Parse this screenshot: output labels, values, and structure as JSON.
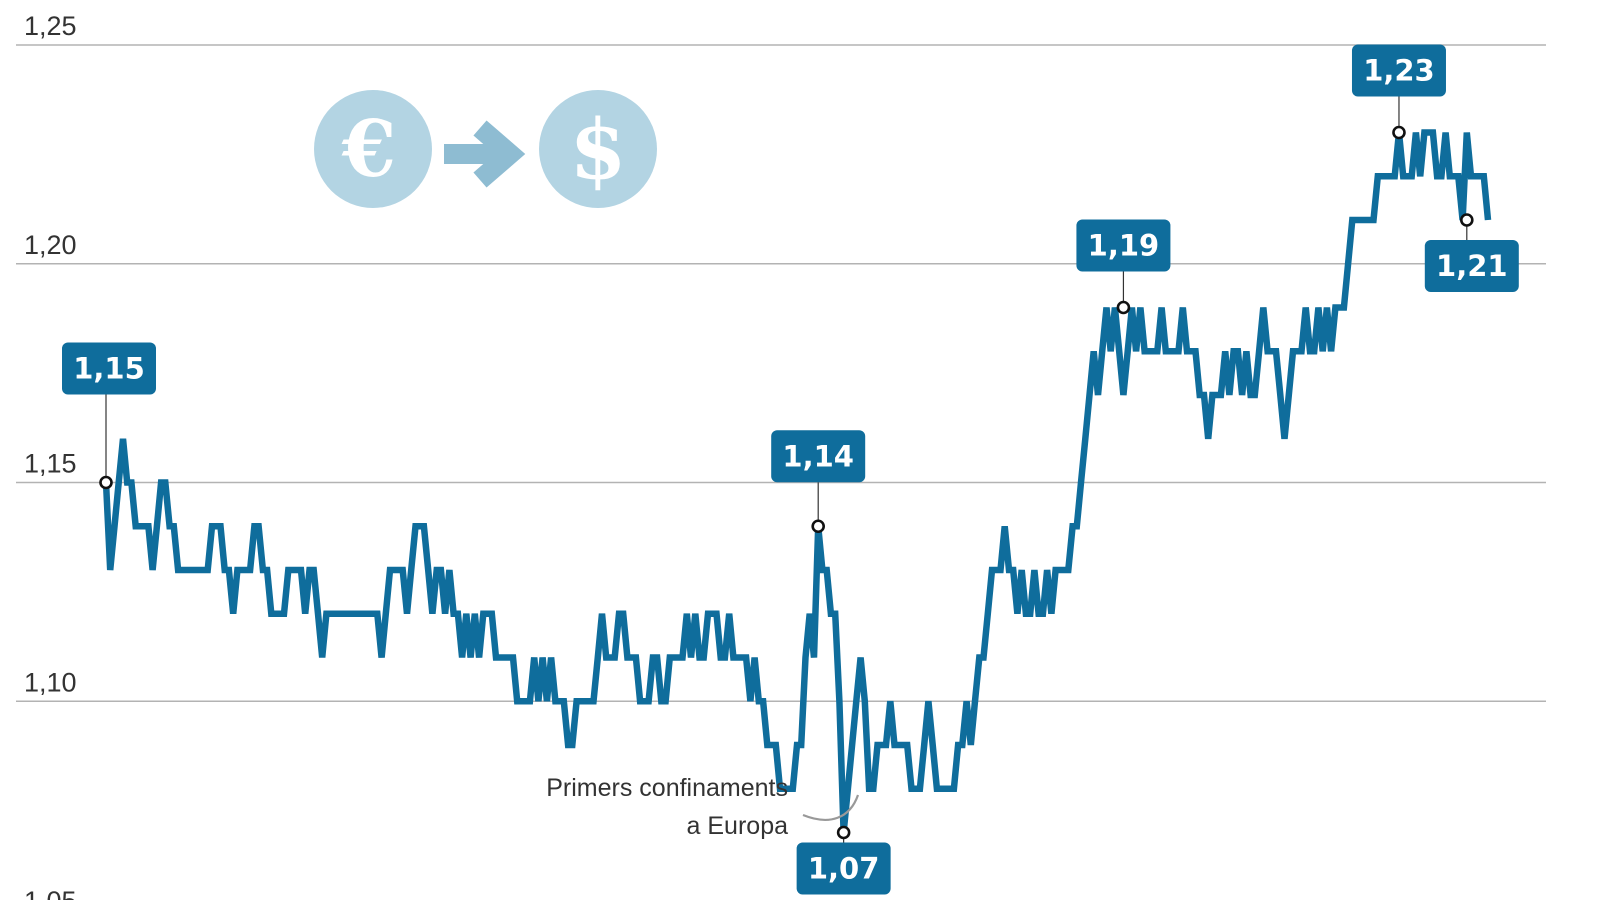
{
  "chart_data": {
    "type": "line",
    "title": "",
    "xlabel": "",
    "ylabel": "",
    "ylim": [
      1.05,
      1.25
    ],
    "yticks": [
      1.05,
      1.1,
      1.15,
      1.2,
      1.25
    ],
    "ytick_labels": [
      "1,05",
      "1,10",
      "1,15",
      "1,20",
      "1,25"
    ],
    "grid": true,
    "legend": "none",
    "series": [
      {
        "color": "#0f6d9c",
        "values": [
          1.15,
          1.13,
          1.14,
          1.15,
          1.16,
          1.15,
          1.15,
          1.14,
          1.14,
          1.14,
          1.14,
          1.13,
          1.14,
          1.15,
          1.15,
          1.14,
          1.14,
          1.13,
          1.13,
          1.13,
          1.13,
          1.13,
          1.13,
          1.13,
          1.13,
          1.14,
          1.14,
          1.14,
          1.13,
          1.13,
          1.12,
          1.13,
          1.13,
          1.13,
          1.13,
          1.14,
          1.14,
          1.13,
          1.13,
          1.12,
          1.12,
          1.12,
          1.12,
          1.13,
          1.13,
          1.13,
          1.13,
          1.12,
          1.13,
          1.13,
          1.12,
          1.11,
          1.12,
          1.12,
          1.12,
          1.12,
          1.12,
          1.12,
          1.12,
          1.12,
          1.12,
          1.12,
          1.12,
          1.12,
          1.12,
          1.11,
          1.12,
          1.13,
          1.13,
          1.13,
          1.13,
          1.12,
          1.13,
          1.14,
          1.14,
          1.14,
          1.13,
          1.12,
          1.13,
          1.13,
          1.12,
          1.13,
          1.12,
          1.12,
          1.11,
          1.12,
          1.11,
          1.12,
          1.11,
          1.12,
          1.12,
          1.12,
          1.11,
          1.11,
          1.11,
          1.11,
          1.11,
          1.1,
          1.1,
          1.1,
          1.1,
          1.11,
          1.1,
          1.11,
          1.1,
          1.11,
          1.1,
          1.1,
          1.1,
          1.09,
          1.09,
          1.1,
          1.1,
          1.1,
          1.1,
          1.1,
          1.11,
          1.12,
          1.11,
          1.11,
          1.11,
          1.12,
          1.12,
          1.11,
          1.11,
          1.11,
          1.1,
          1.1,
          1.1,
          1.11,
          1.11,
          1.1,
          1.1,
          1.11,
          1.11,
          1.11,
          1.11,
          1.12,
          1.11,
          1.12,
          1.11,
          1.11,
          1.12,
          1.12,
          1.12,
          1.11,
          1.11,
          1.12,
          1.11,
          1.11,
          1.11,
          1.11,
          1.1,
          1.11,
          1.1,
          1.1,
          1.09,
          1.09,
          1.09,
          1.08,
          1.08,
          1.08,
          1.08,
          1.09,
          1.09,
          1.11,
          1.12,
          1.11,
          1.14,
          1.13,
          1.13,
          1.12,
          1.12,
          1.1,
          1.07,
          1.08,
          1.09,
          1.1,
          1.11,
          1.1,
          1.08,
          1.08,
          1.09,
          1.09,
          1.09,
          1.1,
          1.09,
          1.09,
          1.09,
          1.09,
          1.08,
          1.08,
          1.08,
          1.09,
          1.1,
          1.09,
          1.08,
          1.08,
          1.08,
          1.08,
          1.08,
          1.09,
          1.09,
          1.1,
          1.09,
          1.1,
          1.11,
          1.11,
          1.12,
          1.13,
          1.13,
          1.13,
          1.14,
          1.13,
          1.13,
          1.12,
          1.13,
          1.12,
          1.12,
          1.13,
          1.12,
          1.12,
          1.13,
          1.12,
          1.13,
          1.13,
          1.13,
          1.13,
          1.14,
          1.14,
          1.15,
          1.16,
          1.17,
          1.18,
          1.17,
          1.18,
          1.19,
          1.18,
          1.19,
          1.18,
          1.17,
          1.18,
          1.19,
          1.18,
          1.19,
          1.18,
          1.18,
          1.18,
          1.18,
          1.19,
          1.18,
          1.18,
          1.18,
          1.18,
          1.19,
          1.18,
          1.18,
          1.18,
          1.17,
          1.17,
          1.16,
          1.17,
          1.17,
          1.17,
          1.18,
          1.17,
          1.18,
          1.18,
          1.17,
          1.18,
          1.17,
          1.17,
          1.18,
          1.19,
          1.18,
          1.18,
          1.18,
          1.17,
          1.16,
          1.17,
          1.18,
          1.18,
          1.18,
          1.19,
          1.18,
          1.18,
          1.19,
          1.18,
          1.19,
          1.18,
          1.19,
          1.19,
          1.19,
          1.2,
          1.21,
          1.21,
          1.21,
          1.21,
          1.21,
          1.21,
          1.22,
          1.22,
          1.22,
          1.22,
          1.22,
          1.23,
          1.22,
          1.22,
          1.22,
          1.23,
          1.22,
          1.23,
          1.23,
          1.23,
          1.22,
          1.22,
          1.23,
          1.22,
          1.22,
          1.22,
          1.21,
          1.23,
          1.22,
          1.22,
          1.22,
          1.22,
          1.21
        ]
      }
    ],
    "callouts": [
      {
        "label": "1,15",
        "value": 1.15,
        "index": 0,
        "placement": "above"
      },
      {
        "label": "1,14",
        "value": 1.14,
        "index": 168,
        "placement": "above"
      },
      {
        "label": "1,07",
        "value": 1.07,
        "index": 174,
        "placement": "below"
      },
      {
        "label": "1,19",
        "value": 1.19,
        "index": 240,
        "placement": "above"
      },
      {
        "label": "1,23",
        "value": 1.23,
        "index": 305,
        "placement": "above"
      },
      {
        "label": "1,21",
        "value": 1.21,
        "index": 321,
        "placement": "below"
      }
    ],
    "annotations": [
      {
        "lines": [
          "Primers confinaments",
          "a Europa"
        ]
      }
    ]
  },
  "icon": {
    "from_symbol": "€",
    "to_symbol": "$",
    "from_icon": "euro-icon",
    "to_icon": "dollar-icon",
    "arrow_icon": "arrow-right-icon"
  }
}
